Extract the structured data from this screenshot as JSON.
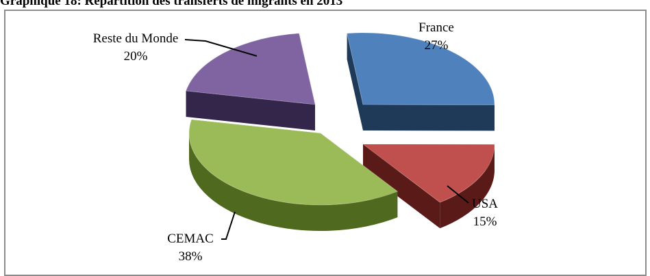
{
  "page": {
    "title": "Graphique 18: Répartition des transferts de migrants en 2013"
  },
  "chart_data": {
    "type": "pie",
    "title": "Graphique 18: Répartition des transferts de migrants en 2013",
    "categories": [
      "France",
      "USA",
      "CEMAC",
      "Reste du Monde"
    ],
    "values": [
      27,
      15,
      38,
      20
    ],
    "value_labels": [
      "27%",
      "15%",
      "38%",
      "20%"
    ],
    "exploded": true,
    "style_3d": true,
    "colors": {
      "France": "#4f81bd",
      "USA": "#c0504d",
      "CEMAC": "#9bbb59",
      "Reste du Monde": "#8064a2"
    },
    "side_colors": {
      "France": "#1f3a58",
      "USA": "#5a1a18",
      "CEMAC": "#4f6a1f",
      "Reste du Monde": "#33264a"
    },
    "legend": "none"
  }
}
